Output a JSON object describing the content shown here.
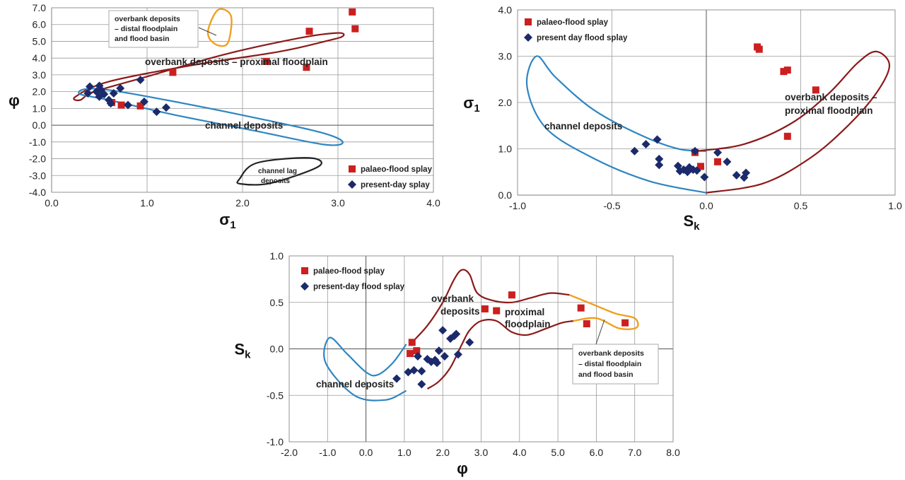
{
  "chart_data": [
    {
      "id": "chart1",
      "type": "scatter",
      "xlabel": "σ₁",
      "ylabel": "φ",
      "xlim": [
        0.0,
        4.0
      ],
      "ylim": [
        -4.0,
        7.0
      ],
      "x_ticks": [
        "0.0",
        "1.0",
        "2.0",
        "3.0",
        "4.0"
      ],
      "y_ticks": [
        "-4.0",
        "-3.0",
        "-2.0",
        "-1.0",
        "0.0",
        "1.0",
        "2.0",
        "3.0",
        "4.0",
        "5.0",
        "6.0",
        "7.0"
      ],
      "grid": true,
      "legend": "bottom-right",
      "series": [
        {
          "name": "palaeo-flood splay",
          "marker": "square",
          "color": "#cc1f1f",
          "points": [
            [
              0.63,
              1.35
            ],
            [
              0.73,
              1.2
            ],
            [
              0.93,
              1.15
            ],
            [
              1.27,
              3.15
            ],
            [
              2.25,
              3.8
            ],
            [
              2.67,
              3.45
            ],
            [
              2.7,
              5.6
            ],
            [
              3.15,
              6.75
            ],
            [
              3.18,
              5.75
            ]
          ]
        },
        {
          "name": "present-day splay",
          "marker": "diamond",
          "color": "#1b2a6b",
          "points": [
            [
              0.38,
              1.9
            ],
            [
              0.4,
              2.3
            ],
            [
              0.47,
              2.0
            ],
            [
              0.5,
              1.7
            ],
            [
              0.5,
              2.35
            ],
            [
              0.52,
              2.1
            ],
            [
              0.55,
              1.85
            ],
            [
              0.6,
              1.5
            ],
            [
              0.62,
              1.3
            ],
            [
              0.65,
              1.9
            ],
            [
              0.72,
              2.2
            ],
            [
              0.8,
              1.2
            ],
            [
              0.93,
              2.7
            ],
            [
              0.97,
              1.4
            ],
            [
              1.1,
              0.8
            ],
            [
              1.2,
              1.05
            ]
          ]
        }
      ],
      "annotations": [
        {
          "text": "overbank deposits – proximal floodplain"
        },
        {
          "text": "channel deposits"
        },
        {
          "text": "channel lag",
          "text2": "deposits"
        },
        {
          "callout": [
            "overbank deposits",
            "– distal floodplain",
            "and flood basin"
          ]
        }
      ],
      "region_colors": {
        "proximal": "#8b1a1a",
        "channel": "#2e86c1",
        "distal": "#f0a020",
        "lag": "#222222"
      }
    },
    {
      "id": "chart2",
      "type": "scatter",
      "xlabel": "Sk",
      "ylabel": "σ₁",
      "xlim": [
        -1.0,
        1.0
      ],
      "ylim": [
        0.0,
        4.0
      ],
      "x_ticks": [
        "-1.0",
        "-0.5",
        "0.0",
        "0.5",
        "1.0"
      ],
      "y_ticks": [
        "0.0",
        "1.0",
        "2.0",
        "3.0",
        "4.0"
      ],
      "grid": true,
      "legend": "top-left",
      "series": [
        {
          "name": "palaeo-flood splay",
          "marker": "square",
          "color": "#cc1f1f",
          "points": [
            [
              -0.06,
              0.92
            ],
            [
              -0.03,
              0.62
            ],
            [
              0.06,
              0.72
            ],
            [
              0.27,
              3.2
            ],
            [
              0.28,
              3.15
            ],
            [
              0.41,
              2.67
            ],
            [
              0.43,
              2.7
            ],
            [
              0.43,
              1.27
            ],
            [
              0.58,
              2.27
            ]
          ]
        },
        {
          "name": "present day flood splay",
          "marker": "diamond",
          "color": "#1b2a6b",
          "points": [
            [
              -0.38,
              0.95
            ],
            [
              -0.32,
              1.1
            ],
            [
              -0.26,
              1.2
            ],
            [
              -0.25,
              0.78
            ],
            [
              -0.25,
              0.65
            ],
            [
              -0.15,
              0.63
            ],
            [
              -0.14,
              0.52
            ],
            [
              -0.12,
              0.55
            ],
            [
              -0.1,
              0.5
            ],
            [
              -0.09,
              0.6
            ],
            [
              -0.07,
              0.55
            ],
            [
              -0.06,
              0.95
            ],
            [
              -0.05,
              0.53
            ],
            [
              -0.01,
              0.39
            ],
            [
              0.06,
              0.92
            ],
            [
              0.11,
              0.72
            ],
            [
              0.16,
              0.43
            ],
            [
              0.2,
              0.38
            ],
            [
              0.21,
              0.48
            ]
          ]
        }
      ],
      "annotations": [
        {
          "text": "channel deposits"
        },
        {
          "text": "overbank deposits –",
          "text2": "proximal floodplain"
        }
      ],
      "region_colors": {
        "proximal": "#8b1a1a",
        "channel": "#2e86c1"
      }
    },
    {
      "id": "chart3",
      "type": "scatter",
      "xlabel": "φ",
      "ylabel": "Sk",
      "xlim": [
        -2.0,
        8.0
      ],
      "ylim": [
        -1.0,
        1.0
      ],
      "x_ticks": [
        "-2.0",
        "-1.0",
        "0.0",
        "1.0",
        "2.0",
        "3.0",
        "4.0",
        "5.0",
        "6.0",
        "7.0",
        "8.0"
      ],
      "y_ticks": [
        "-1.0",
        "-0.5",
        "0.0",
        "0.5",
        "1.0"
      ],
      "grid": true,
      "legend": "top-left",
      "series": [
        {
          "name": "palaeo-flood splay",
          "marker": "square",
          "color": "#cc1f1f",
          "points": [
            [
              1.15,
              -0.05
            ],
            [
              1.2,
              0.07
            ],
            [
              1.32,
              -0.02
            ],
            [
              3.1,
              0.43
            ],
            [
              3.4,
              0.41
            ],
            [
              3.8,
              0.58
            ],
            [
              5.6,
              0.44
            ],
            [
              5.75,
              0.27
            ],
            [
              6.75,
              0.28
            ]
          ]
        },
        {
          "name": "present-day flood splay",
          "marker": "diamond",
          "color": "#1b2a6b",
          "points": [
            [
              0.8,
              -0.32
            ],
            [
              1.1,
              -0.25
            ],
            [
              1.25,
              -0.23
            ],
            [
              1.35,
              -0.08
            ],
            [
              1.45,
              -0.24
            ],
            [
              1.45,
              -0.38
            ],
            [
              1.6,
              -0.11
            ],
            [
              1.7,
              -0.14
            ],
            [
              1.8,
              -0.12
            ],
            [
              1.85,
              -0.15
            ],
            [
              1.9,
              -0.02
            ],
            [
              2.0,
              0.2
            ],
            [
              2.05,
              -0.08
            ],
            [
              2.2,
              0.11
            ],
            [
              2.3,
              0.14
            ],
            [
              2.35,
              0.16
            ],
            [
              2.4,
              -0.06
            ],
            [
              2.7,
              0.07
            ]
          ]
        }
      ],
      "annotations": [
        {
          "text": "overbank",
          "text2": "deposits"
        },
        {
          "text": "proximal",
          "text2": "floodplain"
        },
        {
          "text": "channel deposits"
        },
        {
          "callout": [
            "overbank deposits",
            "– distal floodplain",
            "and flood basin"
          ]
        }
      ],
      "region_colors": {
        "proximal": "#8b1a1a",
        "channel": "#2e86c1",
        "distal": "#f0a020"
      }
    }
  ]
}
